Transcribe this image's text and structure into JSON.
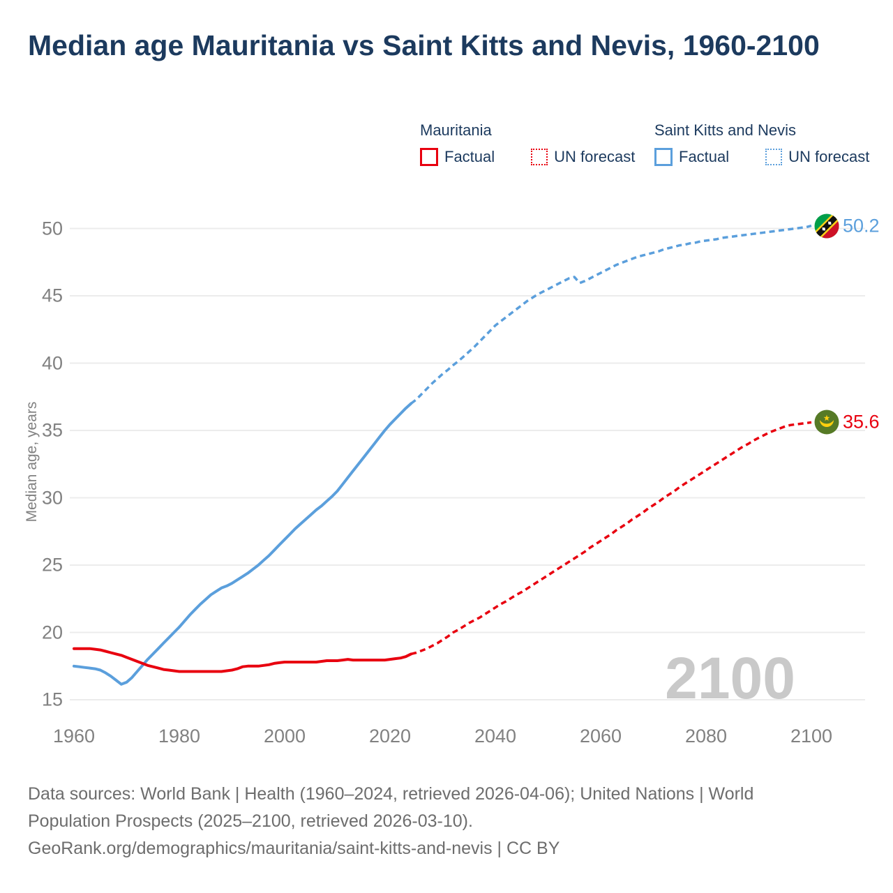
{
  "title": "Median age Mauritania vs Saint Kitts and Nevis, 1960-2100",
  "legend": {
    "mauritania": {
      "name": "Mauritania",
      "factual_label": "Factual",
      "forecast_label": "UN forecast",
      "color": "#e8000f"
    },
    "saint_kitts": {
      "name": "Saint Kitts and Nevis",
      "factual_label": "Factual",
      "forecast_label": "UN forecast",
      "color": "#5b9fdc"
    }
  },
  "y_axis": {
    "title": "Median age, years",
    "ticks": [
      "15",
      "20",
      "25",
      "30",
      "35",
      "40",
      "45",
      "50"
    ]
  },
  "x_axis": {
    "ticks": [
      "1960",
      "1980",
      "2000",
      "2020",
      "2040",
      "2060",
      "2080",
      "2100"
    ]
  },
  "watermark": "2100",
  "end_labels": {
    "saint_kitts": "50.2",
    "mauritania": "35.6"
  },
  "footer": {
    "lines": [
      "Data sources: World Bank | Health (1960–2024, retrieved 2026-04-06); United Nations | World",
      "Population Prospects (2025–2100, retrieved 2026-03-10).",
      "GeoRank.org/demographics/mauritania/saint-kitts-and-nevis | CC BY"
    ]
  },
  "chart_data": {
    "type": "line",
    "title": "Median age Mauritania vs Saint Kitts and Nevis, 1960-2100",
    "xlabel": "",
    "ylabel": "Median age, years",
    "xlim": [
      1960,
      2100
    ],
    "ylim": [
      15,
      50
    ],
    "x_ticks": [
      1960,
      1980,
      2000,
      2020,
      2040,
      2060,
      2080,
      2100
    ],
    "y_ticks": [
      15,
      20,
      25,
      30,
      35,
      40,
      45,
      50
    ],
    "grid": "horizontal",
    "legend_position": "top",
    "end_values": {
      "saint_kitts_2100": 50.2,
      "mauritania_2100": 35.6
    },
    "series": [
      {
        "name": "Saint Kitts and Nevis — Factual",
        "color": "#5b9fdc",
        "style": "solid",
        "start_year": 1960,
        "values": [
          17.5,
          17.45,
          17.4,
          17.35,
          17.3,
          17.2,
          17.0,
          16.75,
          16.45,
          16.15,
          16.3,
          16.65,
          17.1,
          17.55,
          18.0,
          18.4,
          18.8,
          19.2,
          19.6,
          20.0,
          20.4,
          20.85,
          21.3,
          21.7,
          22.1,
          22.45,
          22.8,
          23.05,
          23.3,
          23.45,
          23.65,
          23.9,
          24.15,
          24.4,
          24.7,
          25.0,
          25.35,
          25.7,
          26.1,
          26.5,
          26.9,
          27.3,
          27.7,
          28.05,
          28.4,
          28.75,
          29.1,
          29.4,
          29.75,
          30.1,
          30.5,
          31.0,
          31.5,
          32.0,
          32.5,
          33.0,
          33.5,
          34.0,
          34.5,
          35.0,
          35.45,
          35.85,
          36.25,
          36.65,
          37.0
        ]
      },
      {
        "name": "Saint Kitts and Nevis — UN forecast",
        "color": "#5b9fdc",
        "style": "dashed",
        "start_year": 2024,
        "values": [
          37.0,
          37.3,
          37.7,
          38.1,
          38.5,
          38.85,
          39.2,
          39.5,
          39.85,
          40.15,
          40.5,
          40.85,
          41.2,
          41.6,
          42.0,
          42.4,
          42.8,
          43.1,
          43.4,
          43.7,
          44.0,
          44.3,
          44.6,
          44.85,
          45.1,
          45.3,
          45.5,
          45.7,
          45.9,
          46.1,
          46.3,
          46.4,
          45.95,
          46.1,
          46.3,
          46.5,
          46.7,
          46.9,
          47.1,
          47.3,
          47.45,
          47.6,
          47.75,
          47.9,
          48.0,
          48.1,
          48.2,
          48.3,
          48.45,
          48.55,
          48.65,
          48.75,
          48.8,
          48.9,
          48.95,
          49.05,
          49.1,
          49.15,
          49.2,
          49.3,
          49.35,
          49.4,
          49.45,
          49.5,
          49.55,
          49.6,
          49.65,
          49.7,
          49.75,
          49.8,
          49.85,
          49.9,
          49.95,
          50.0,
          50.05,
          50.1,
          50.2
        ]
      },
      {
        "name": "Mauritania — Factual",
        "color": "#e8000f",
        "style": "solid",
        "start_year": 1960,
        "values": [
          18.8,
          18.8,
          18.8,
          18.8,
          18.75,
          18.7,
          18.6,
          18.5,
          18.4,
          18.3,
          18.15,
          18.0,
          17.85,
          17.7,
          17.55,
          17.45,
          17.35,
          17.25,
          17.2,
          17.15,
          17.1,
          17.1,
          17.1,
          17.1,
          17.1,
          17.1,
          17.1,
          17.1,
          17.1,
          17.15,
          17.2,
          17.3,
          17.45,
          17.5,
          17.5,
          17.5,
          17.55,
          17.6,
          17.7,
          17.75,
          17.8,
          17.8,
          17.8,
          17.8,
          17.8,
          17.8,
          17.8,
          17.85,
          17.9,
          17.9,
          17.9,
          17.95,
          18.0,
          17.95,
          17.95,
          17.95,
          17.95,
          17.95,
          17.95,
          17.95,
          18.0,
          18.05,
          18.1,
          18.2,
          18.4
        ]
      },
      {
        "name": "Mauritania — UN forecast",
        "color": "#e8000f",
        "style": "dashed",
        "start_year": 2024,
        "values": [
          18.4,
          18.5,
          18.65,
          18.8,
          19.0,
          19.2,
          19.45,
          19.7,
          20.0,
          20.2,
          20.45,
          20.7,
          20.9,
          21.1,
          21.35,
          21.6,
          21.85,
          22.1,
          22.3,
          22.55,
          22.8,
          23.0,
          23.25,
          23.5,
          23.75,
          24.0,
          24.25,
          24.5,
          24.75,
          25.0,
          25.25,
          25.5,
          25.75,
          26.0,
          26.3,
          26.55,
          26.8,
          27.05,
          27.3,
          27.6,
          27.85,
          28.1,
          28.4,
          28.65,
          28.9,
          29.2,
          29.45,
          29.7,
          30.0,
          30.25,
          30.5,
          30.8,
          31.05,
          31.3,
          31.55,
          31.8,
          32.05,
          32.3,
          32.55,
          32.8,
          33.05,
          33.3,
          33.55,
          33.8,
          34.0,
          34.25,
          34.45,
          34.65,
          34.85,
          35.0,
          35.15,
          35.3,
          35.4,
          35.45,
          35.5,
          35.55,
          35.6
        ]
      }
    ]
  }
}
